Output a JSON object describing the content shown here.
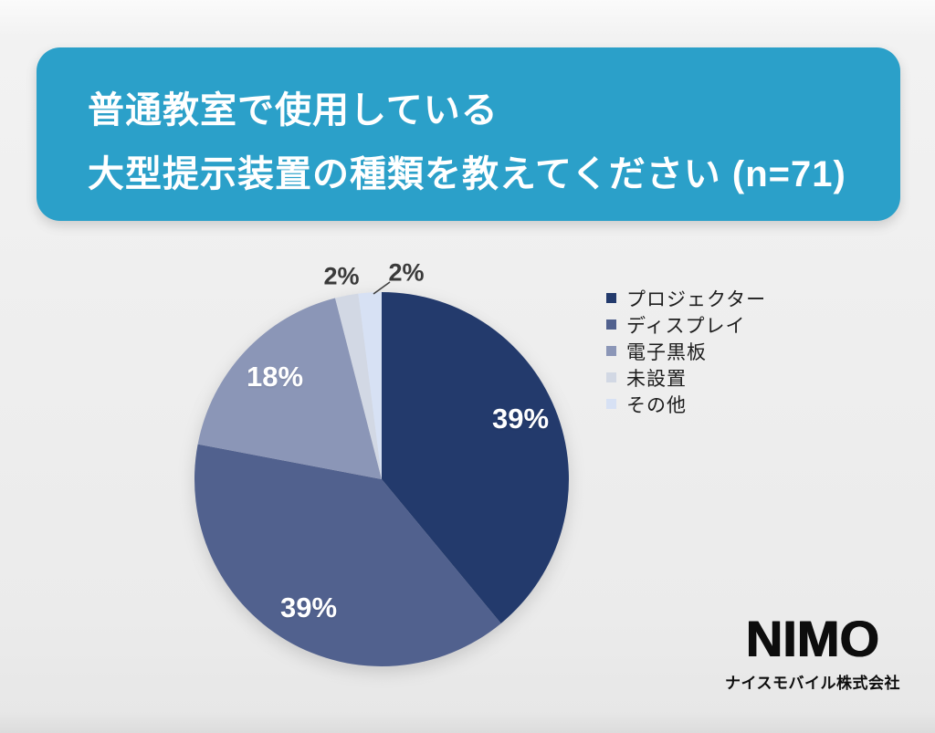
{
  "header": {
    "title_line1": "普通教室で使用している",
    "title_line2": "大型提示装置の種類を教えてください (n=71)",
    "background_color": "#2BA0C9",
    "text_color": "#FFFFFF"
  },
  "chart_data": {
    "type": "pie",
    "title": "普通教室で使用している大型提示装置の種類を教えてください (n=71)",
    "sample_size": 71,
    "unit": "%",
    "categories": [
      "プロジェクター",
      "ディスプレイ",
      "電子黒板",
      "未設置",
      "その他"
    ],
    "values": [
      39,
      39,
      18,
      2,
      2
    ],
    "labels": [
      "39%",
      "39%",
      "18%",
      "2%",
      "2%"
    ],
    "colors": [
      "#233A6C",
      "#51618E",
      "#8B96B7",
      "#D2D8E4",
      "#D7E1F4"
    ],
    "start_angle_deg": 0,
    "direction": "clockwise",
    "legend_position": "right",
    "label_placement": [
      "inside",
      "inside",
      "inside",
      "outside",
      "outside-with-leader"
    ]
  },
  "footer": {
    "brand": "NIMO",
    "company": "ナイスモバイル株式会社"
  }
}
